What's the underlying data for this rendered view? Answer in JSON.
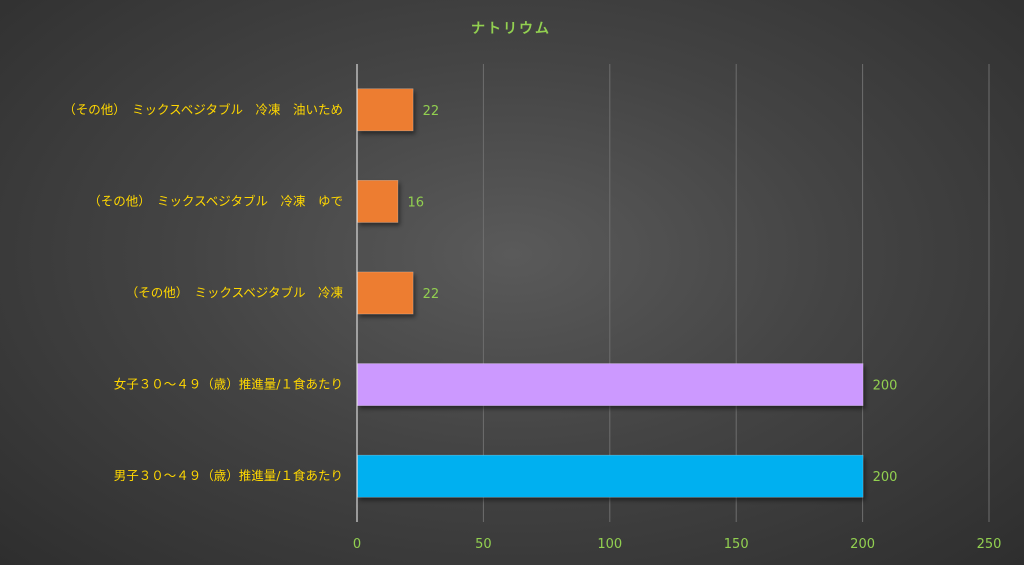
{
  "chart_data": {
    "type": "bar",
    "orientation": "horizontal",
    "title": "ナトリウム",
    "categories": [
      "（その他）　ミックスベジタブル　冷凍　油いため",
      "（その他）　ミックスベジタブル　冷凍　ゆで",
      "（その他）　ミックスベジタブル　冷凍",
      "女子３０～４９（歳）推進量/１食あたり",
      "男子３０～４９（歳）推進量/１食あたり"
    ],
    "values": [
      22,
      16,
      22,
      200,
      200
    ],
    "colors": [
      "#ed7d31",
      "#ed7d31",
      "#ed7d31",
      "#cc99ff",
      "#00b0f0"
    ],
    "xlim": [
      0,
      250
    ],
    "xticks": [
      0,
      50,
      100,
      150,
      200,
      250
    ],
    "grid": true,
    "legend": "none"
  }
}
